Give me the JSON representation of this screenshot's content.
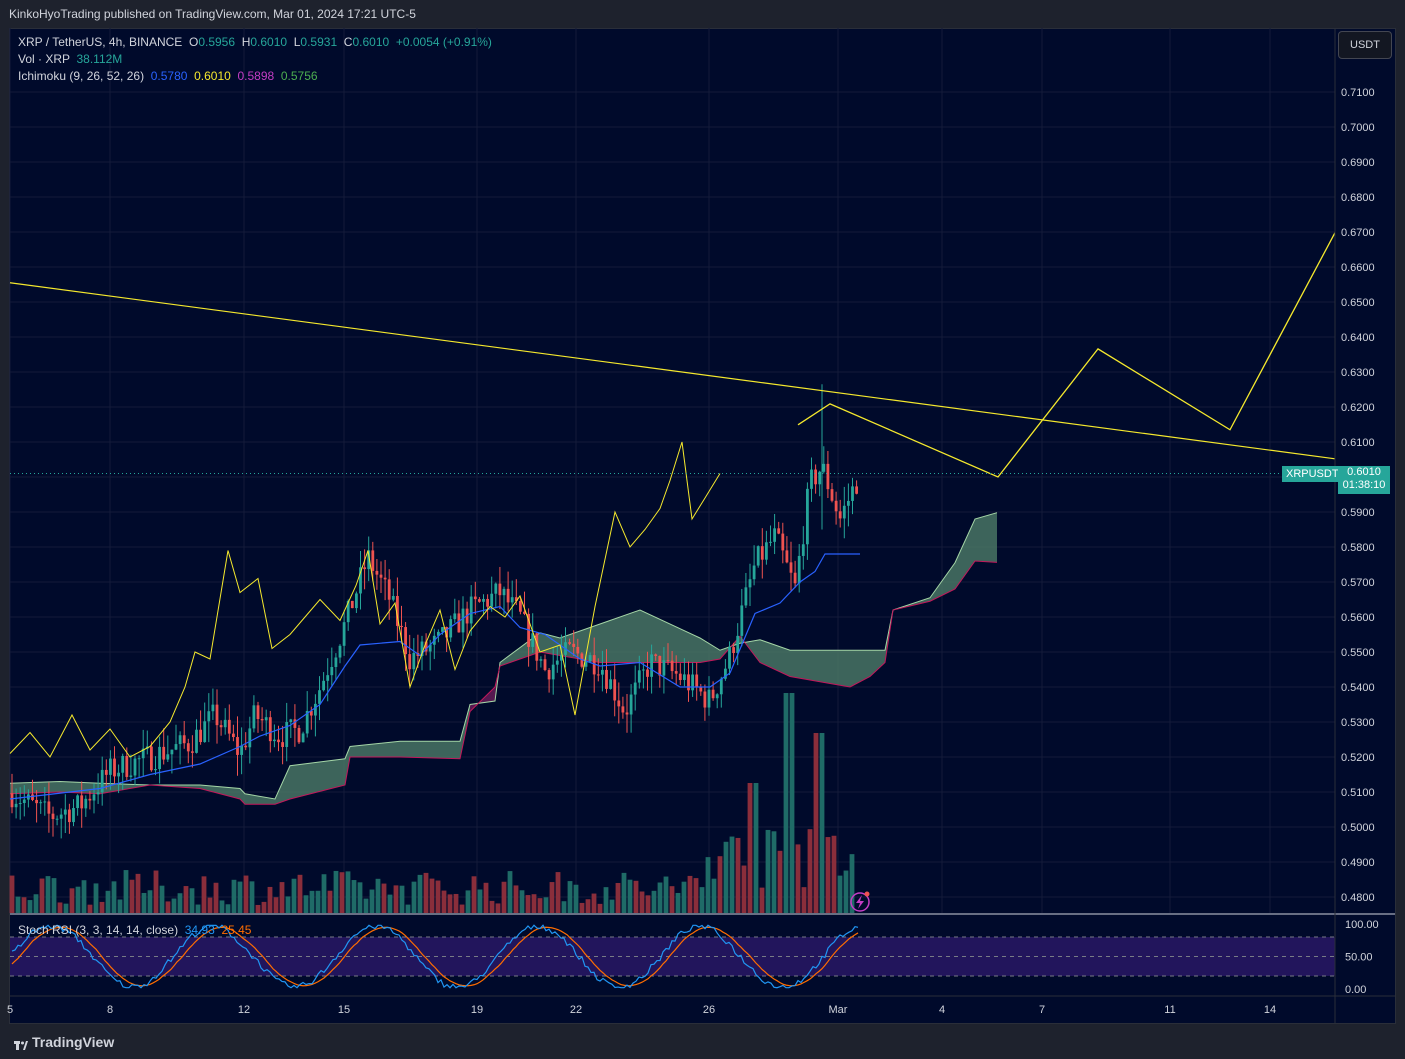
{
  "header": {
    "published": "KinkoHyoTrading published on TradingView.com, Mar 01, 2024 17:21 UTC-5"
  },
  "legend": {
    "symbol": "XRP / TetherUS, 4h, BINANCE",
    "o_label": "O",
    "o": "0.5956",
    "h_label": "H",
    "h": "0.6010",
    "l_label": "L",
    "l": "0.5931",
    "c_label": "C",
    "c": "0.6010",
    "change": "+0.0054 (+0.91%)",
    "vol_label": "Vol · XRP",
    "vol": "38.112M",
    "ichimoku_label": "Ichimoku (9, 26, 52, 26)",
    "ichi_conv": "0.5780",
    "ichi_base": "0.6010",
    "ichi_lead1": "0.5898",
    "ichi_lead2": "0.5756",
    "stoch_label": "Stoch RSI (3, 3, 14, 14, close)",
    "stoch_k": "34.93",
    "stoch_d": "25.45"
  },
  "currency_button": "USDT",
  "price_tag": {
    "symbol": "XRPUSDT",
    "price": "0.6010",
    "countdown": "01:38:10"
  },
  "brand": "TradingView",
  "colors": {
    "background": "#000a2b",
    "up": "#26a69a",
    "down": "#ef5350",
    "trend": "#f5e92d",
    "conversion": "#2962ff",
    "kumo_bull": "#4c7a68",
    "kumo_bear": "#6a1b5a"
  },
  "chart_data": {
    "type": "candlestick",
    "title": "XRP / TetherUS, 4h, BINANCE",
    "price_axis": [
      "0.7100",
      "0.7000",
      "0.6900",
      "0.6800",
      "0.6700",
      "0.6600",
      "0.6500",
      "0.6400",
      "0.6300",
      "0.6200",
      "0.6100",
      "0.6000",
      "0.5900",
      "0.5800",
      "0.5700",
      "0.5600",
      "0.5500",
      "0.5400",
      "0.5300",
      "0.5200",
      "0.5100",
      "0.5000",
      "0.4900",
      "0.4800"
    ],
    "ylim": [
      0.476,
      0.717
    ],
    "x_ticks": [
      "5",
      "8",
      "12",
      "15",
      "19",
      "22",
      "26",
      "Mar",
      "4",
      "7",
      "11",
      "14"
    ],
    "stoch_axis": [
      "100.00",
      "50.00",
      "0.00"
    ],
    "trendline": {
      "from": [
        0,
        0.6555
      ],
      "to": [
        1325,
        0.6052
      ]
    },
    "projection_price_path": [
      {
        "x_slot": 0,
        "price": 0.6149
      },
      {
        "x_slot": 1,
        "price": 0.6209
      },
      {
        "x_slot": 2,
        "price": 0.6
      },
      {
        "x_slot": 3,
        "price": 0.6366
      },
      {
        "x_slot": 4,
        "price": 0.6135
      },
      {
        "x_slot": 5,
        "price": 0.6698
      }
    ],
    "last_price": 0.601
  }
}
